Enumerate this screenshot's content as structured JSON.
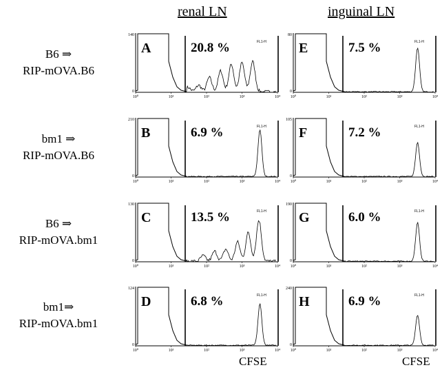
{
  "columns": [
    "renal LN",
    "inguinal LN"
  ],
  "rows": [
    {
      "line1": "B6 ⇒",
      "line2": "RIP-mOVA.B6"
    },
    {
      "line1": "bm1 ⇒",
      "line2": "RIP-mOVA.B6"
    },
    {
      "line1": "B6 ⇒",
      "line2": "RIP-mOVA.bm1"
    },
    {
      "line1": "bm1⇒",
      "line2": "RIP-mOVA.bm1"
    }
  ],
  "xaxis_label": "CFSE",
  "chart_data": [
    {
      "type": "area",
      "panel": "A",
      "percent": "20.8 %",
      "ymax": "140",
      "param": "FL1-H",
      "xscale": "log",
      "xlim": [
        1,
        10000
      ],
      "xticks": [
        "10⁰",
        "10¹",
        "10²",
        "10³",
        "10⁴"
      ],
      "peaks": [
        {
          "x": 2000,
          "h": 0.55
        },
        {
          "x": 1000,
          "h": 0.53
        },
        {
          "x": 500,
          "h": 0.5
        },
        {
          "x": 250,
          "h": 0.38
        },
        {
          "x": 120,
          "h": 0.26
        },
        {
          "x": 60,
          "h": 0.12
        },
        {
          "x": 30,
          "h": 0.08
        }
      ],
      "gate_x": 25,
      "mode": "multi"
    },
    {
      "type": "area",
      "panel": "E",
      "percent": "7.5 %",
      "ymax": "80",
      "param": "FL1-H",
      "xscale": "log",
      "xlim": [
        1,
        10000
      ],
      "xticks": [
        "10⁰",
        "10¹",
        "10²",
        "10³",
        "10⁴"
      ],
      "peaks": [
        {
          "x": 3200,
          "h": 0.8
        }
      ],
      "gate_x": 25,
      "mode": "single"
    },
    {
      "type": "area",
      "panel": "B",
      "percent": "6.9 %",
      "ymax": "210",
      "param": "FL1-H",
      "xscale": "log",
      "xlim": [
        1,
        10000
      ],
      "xticks": [
        "10⁰",
        "10¹",
        "10²",
        "10³",
        "10⁴"
      ],
      "peaks": [
        {
          "x": 3200,
          "h": 0.85
        }
      ],
      "gate_x": 25,
      "mode": "single"
    },
    {
      "type": "area",
      "panel": "F",
      "percent": "7.2 %",
      "ymax": "105",
      "param": "FL1-H",
      "xscale": "log",
      "xlim": [
        1,
        10000
      ],
      "xticks": [
        "10⁰",
        "10¹",
        "10²",
        "10³",
        "10⁴"
      ],
      "peaks": [
        {
          "x": 3200,
          "h": 0.62
        }
      ],
      "gate_x": 25,
      "mode": "single"
    },
    {
      "type": "area",
      "panel": "C",
      "percent": "13.5 %",
      "ymax": "130",
      "param": "FL1-H",
      "xscale": "log",
      "xlim": [
        1,
        10000
      ],
      "xticks": [
        "10⁰",
        "10¹",
        "10²",
        "10³",
        "10⁴"
      ],
      "peaks": [
        {
          "x": 3000,
          "h": 0.75
        },
        {
          "x": 1500,
          "h": 0.52
        },
        {
          "x": 750,
          "h": 0.35
        },
        {
          "x": 350,
          "h": 0.22
        },
        {
          "x": 170,
          "h": 0.18
        },
        {
          "x": 80,
          "h": 0.1
        }
      ],
      "gate_x": 25,
      "mode": "multi"
    },
    {
      "type": "area",
      "panel": "G",
      "percent": "6.0 %",
      "ymax": "190",
      "param": "FL1-H",
      "xscale": "log",
      "xlim": [
        1,
        10000
      ],
      "xticks": [
        "10⁰",
        "10¹",
        "10²",
        "10³",
        "10⁴"
      ],
      "peaks": [
        {
          "x": 3200,
          "h": 0.7
        }
      ],
      "gate_x": 25,
      "mode": "single"
    },
    {
      "type": "area",
      "panel": "D",
      "percent": "6.8 %",
      "ymax": "124",
      "param": "FL1-H",
      "xscale": "log",
      "xlim": [
        1,
        10000
      ],
      "xticks": [
        "10⁰",
        "10¹",
        "10²",
        "10³",
        "10⁴"
      ],
      "peaks": [
        {
          "x": 3200,
          "h": 0.75
        }
      ],
      "gate_x": 25,
      "mode": "single"
    },
    {
      "type": "area",
      "panel": "H",
      "percent": "6.9 %",
      "ymax": "240",
      "param": "FL1-H",
      "xscale": "log",
      "xlim": [
        1,
        10000
      ],
      "xticks": [
        "10⁰",
        "10¹",
        "10²",
        "10³",
        "10⁴"
      ],
      "peaks": [
        {
          "x": 3200,
          "h": 0.55
        }
      ],
      "gate_x": 25,
      "mode": "single"
    }
  ]
}
